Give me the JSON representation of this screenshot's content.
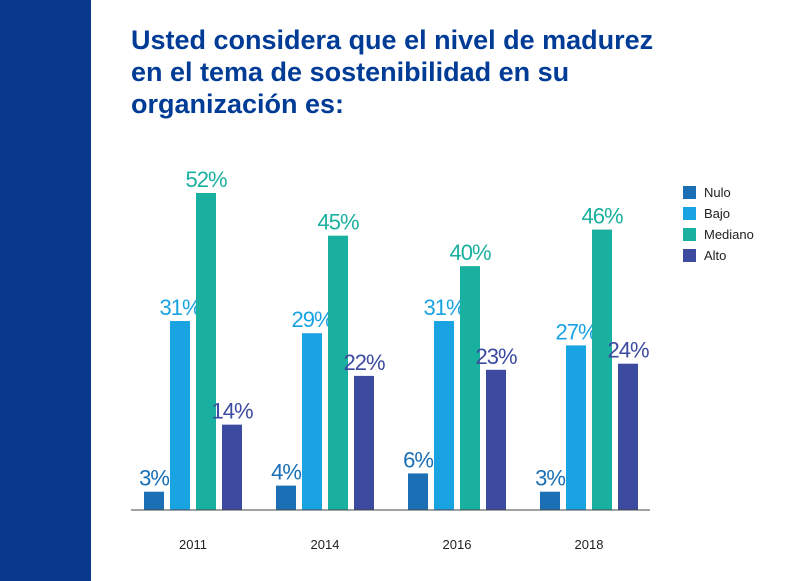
{
  "title_lines": [
    "Usted considera que el nivel de madurez",
    "en el tema de sostenibilidad en su",
    "organización es:"
  ],
  "colors": {
    "side_band": "#0b3a8c",
    "title": "#003c96"
  },
  "chart_data": {
    "type": "bar",
    "categories": [
      "2011",
      "2014",
      "2016",
      "2018"
    ],
    "series": [
      {
        "name": "Nulo",
        "color": "#1a6fb5",
        "values": [
          3,
          4,
          6,
          3
        ]
      },
      {
        "name": "Bajo",
        "color": "#1aa3e3",
        "values": [
          31,
          29,
          31,
          27
        ]
      },
      {
        "name": "Mediano",
        "color": "#1ab0a0",
        "values": [
          52,
          45,
          40,
          46
        ]
      },
      {
        "name": "Alto",
        "color": "#3c4aa0",
        "values": [
          14,
          22,
          23,
          24
        ]
      }
    ],
    "data_labels": [
      [
        "3%",
        "4%",
        "6%",
        "3%"
      ],
      [
        "31%",
        "29%",
        "31%",
        "27%"
      ],
      [
        "52%",
        "45%",
        "40%",
        "46%"
      ],
      [
        "14%",
        "22%",
        "23%",
        "24%"
      ]
    ],
    "ylim": [
      0,
      52
    ],
    "grid": false,
    "legend_position": "top-right"
  }
}
